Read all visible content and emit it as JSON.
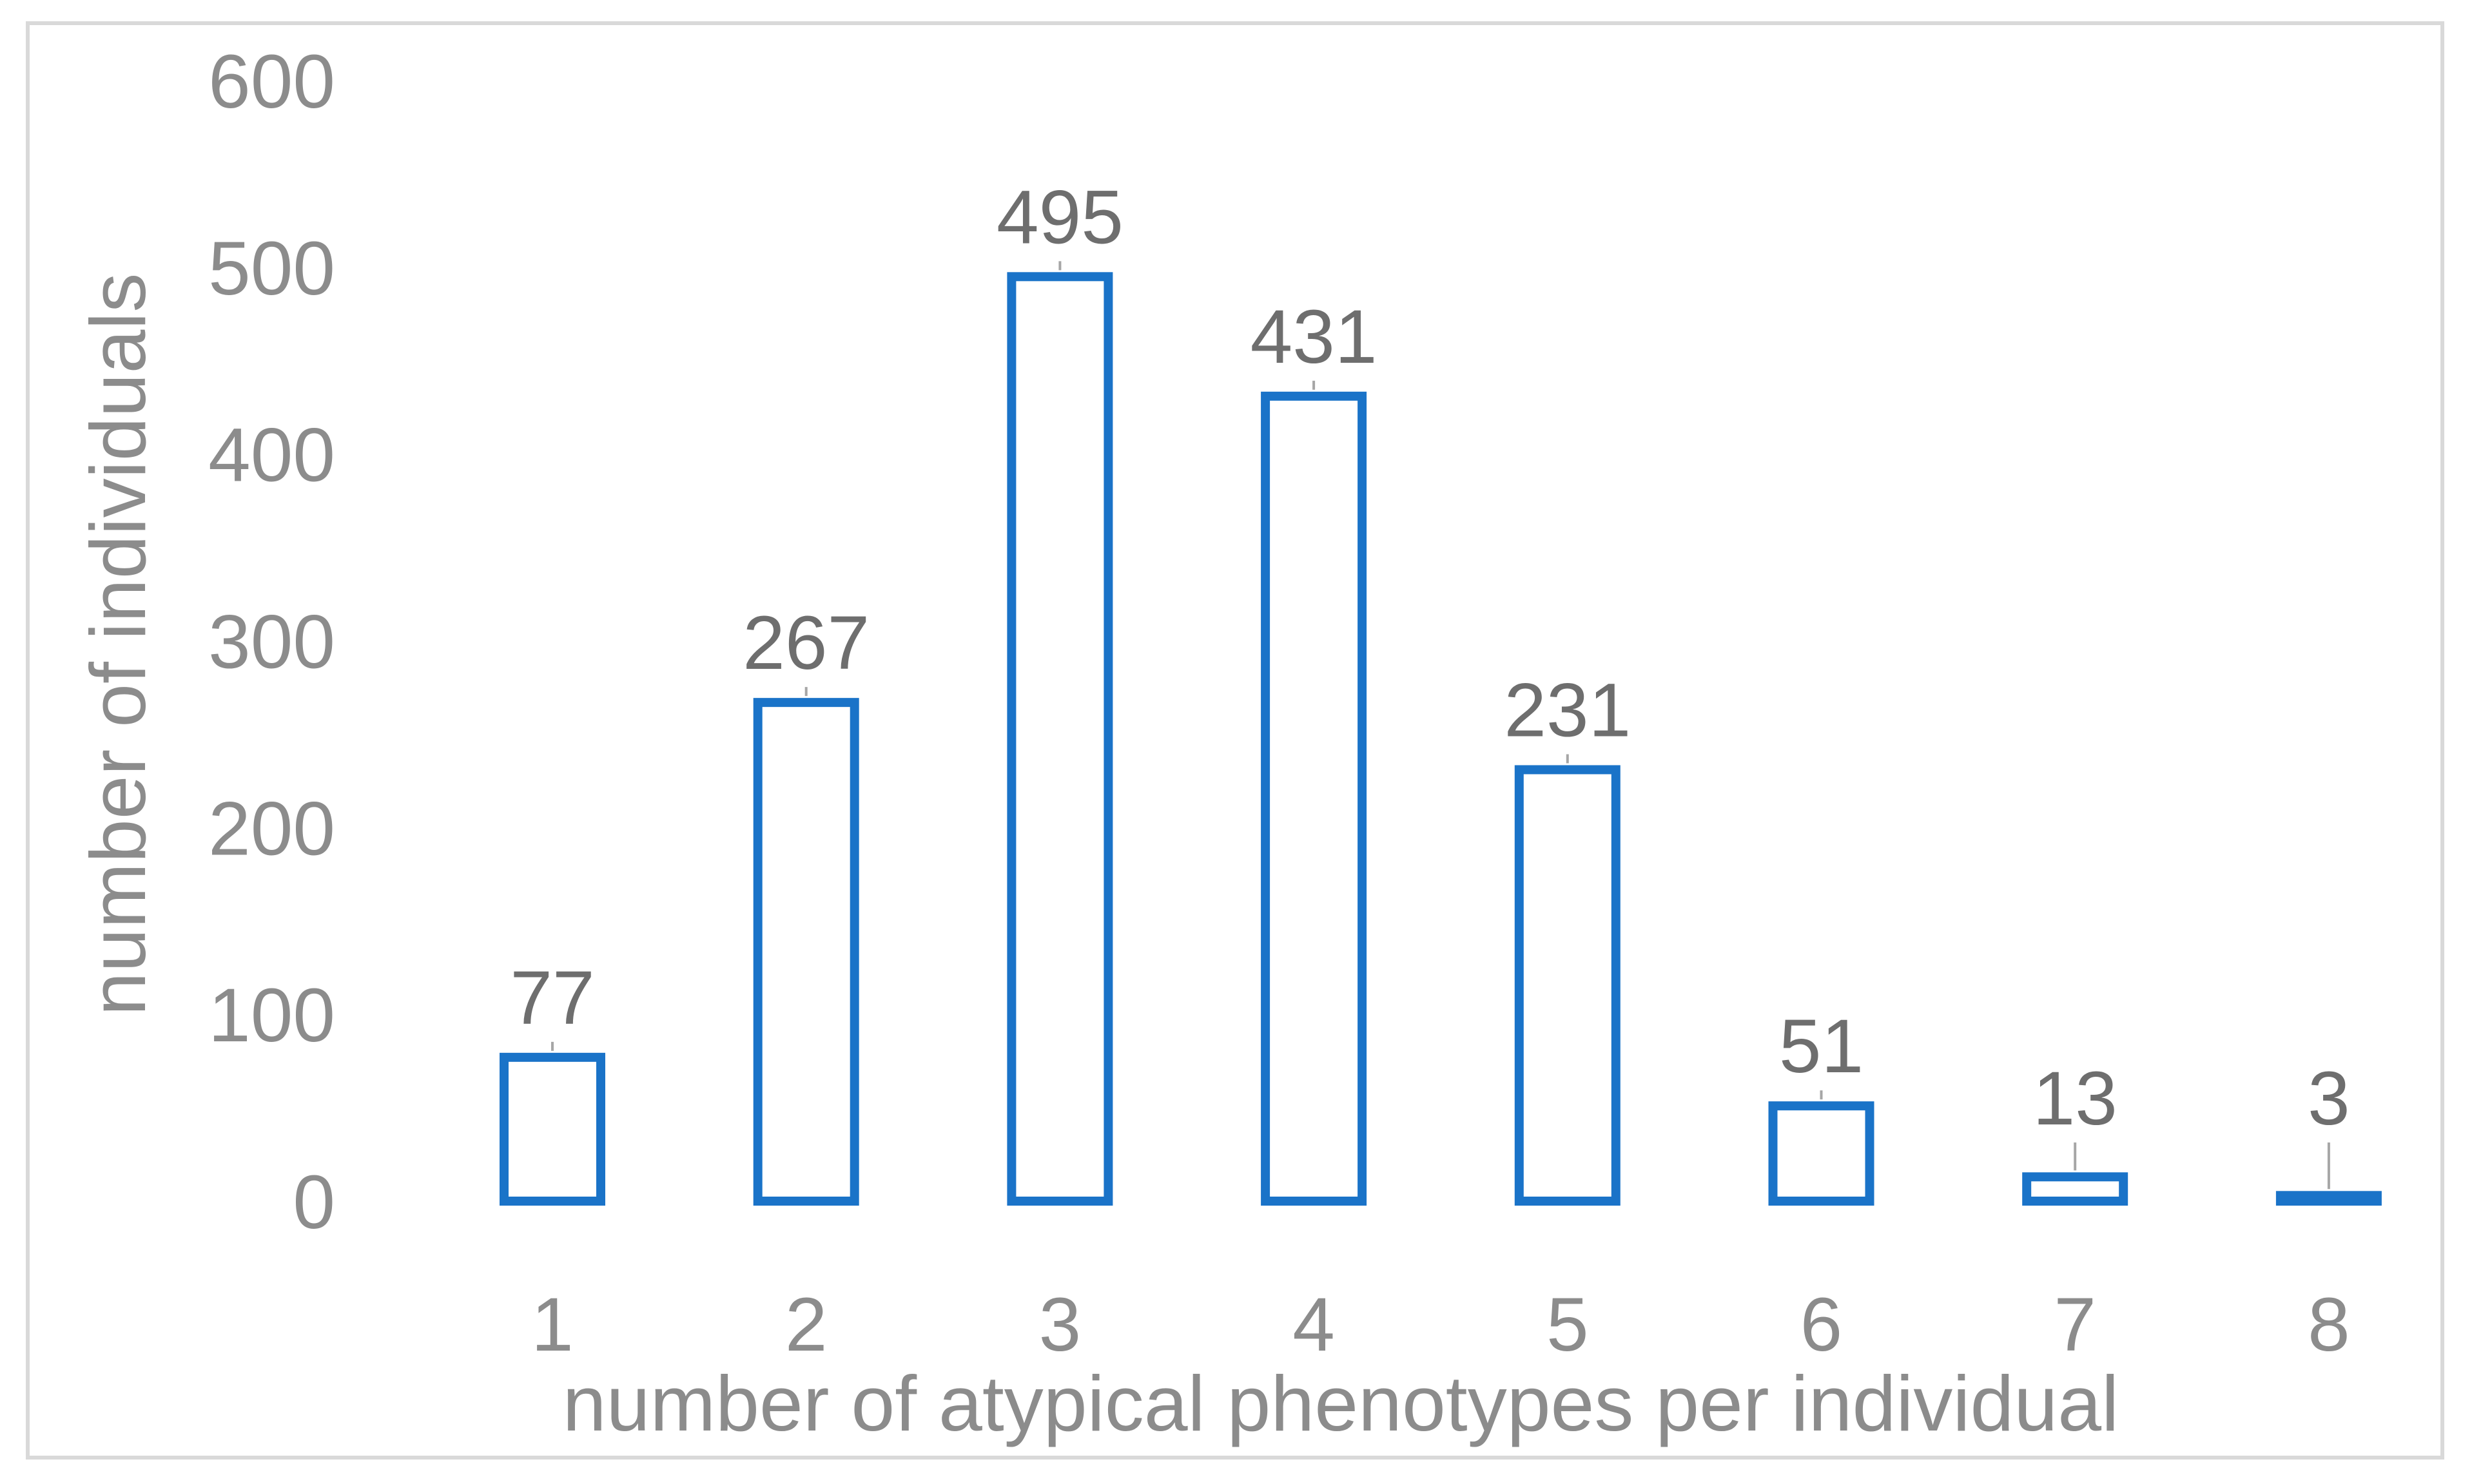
{
  "chart_data": {
    "type": "bar",
    "categories": [
      "1",
      "2",
      "3",
      "4",
      "5",
      "6",
      "7",
      "8"
    ],
    "values": [
      77,
      267,
      495,
      431,
      231,
      51,
      13,
      3
    ],
    "data_labels": [
      "77",
      "267",
      "495",
      "431",
      "231",
      "51",
      "13",
      "3"
    ],
    "xlabel": "number of atypical phenotypes per individual",
    "ylabel": "number of individuals",
    "ylim": [
      0,
      600
    ],
    "yticks": [
      0,
      100,
      200,
      300,
      400,
      500,
      600
    ],
    "grid": false,
    "legend": "none",
    "colors": {
      "bar_outline": "#1a73c8",
      "bar_fill": "#ffffff",
      "tick_text": "#8c8c8c",
      "data_label_text": "#6e6e6e",
      "frame": "#d9d9d9"
    }
  }
}
